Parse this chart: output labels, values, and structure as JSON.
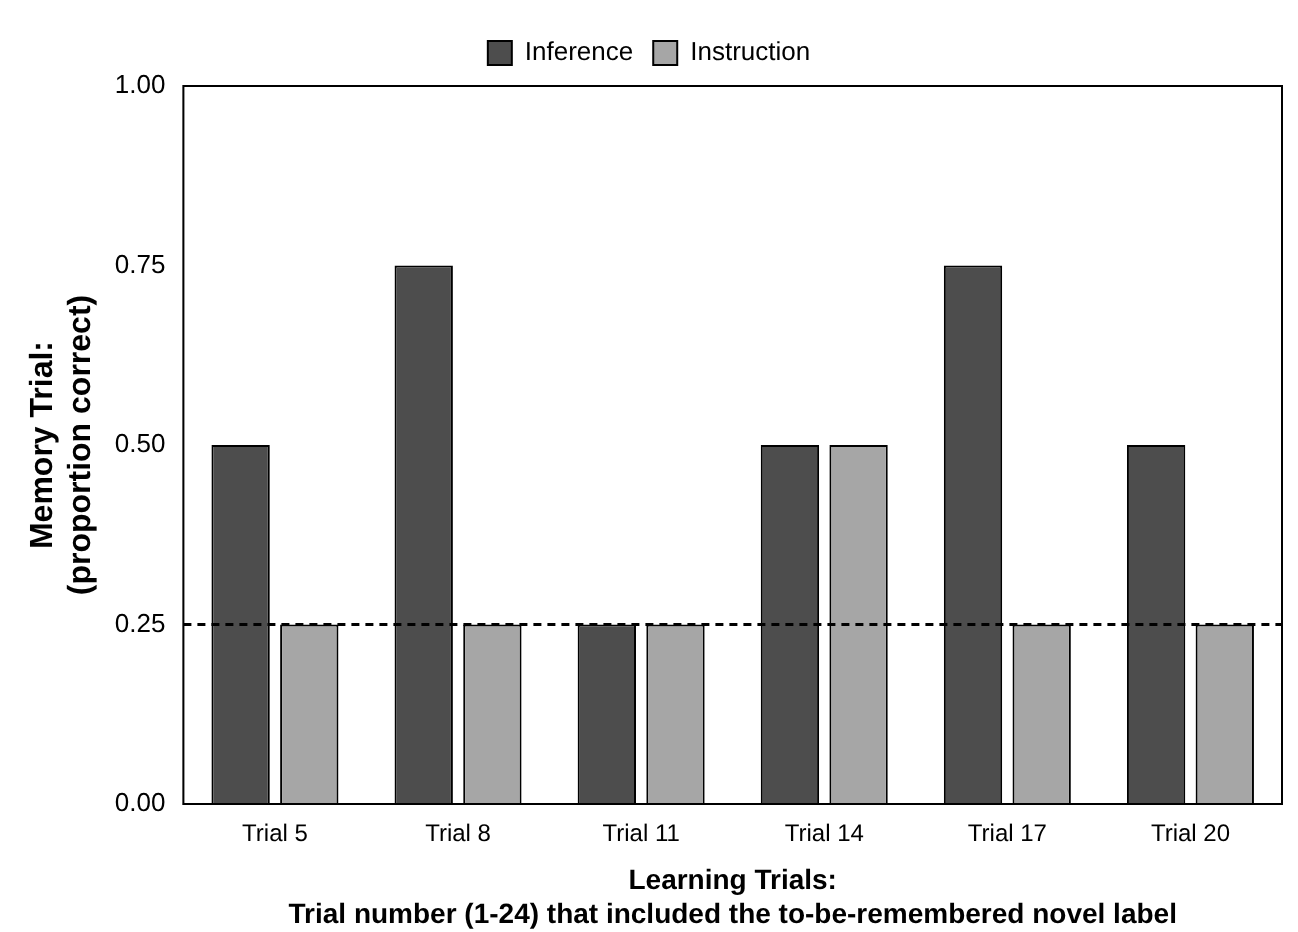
{
  "chart_data": {
    "type": "bar",
    "xlabel": "Learning Trials:\nTrial number (1-24) that included the to-be-remembered novel label",
    "ylabel": "Memory Trial:\n(proportion correct)",
    "categories": [
      "Trial 5",
      "Trial 8",
      "Trial 11",
      "Trial 14",
      "Trial 17",
      "Trial 20"
    ],
    "series": [
      {
        "name": "Inference",
        "color": "#4d4d4d",
        "values": [
          0.5,
          0.75,
          0.25,
          0.5,
          0.75,
          0.5
        ]
      },
      {
        "name": "Instruction",
        "color": "#a6a6a6",
        "values": [
          0.25,
          0.25,
          0.25,
          0.5,
          0.25,
          0.25
        ]
      }
    ],
    "ylim": [
      0,
      1
    ],
    "yticks": [
      {
        "value": 0,
        "label": "0.00"
      },
      {
        "value": 0.25,
        "label": "0.25"
      },
      {
        "value": 0.5,
        "label": "0.50"
      },
      {
        "value": 0.75,
        "label": "0.75"
      },
      {
        "value": 1,
        "label": "1.00"
      }
    ],
    "ref_lines": [
      {
        "axis": "y",
        "value": 0.25,
        "line_style": "dashed",
        "color": "#000000"
      }
    ],
    "grid": false,
    "legend": "top"
  }
}
